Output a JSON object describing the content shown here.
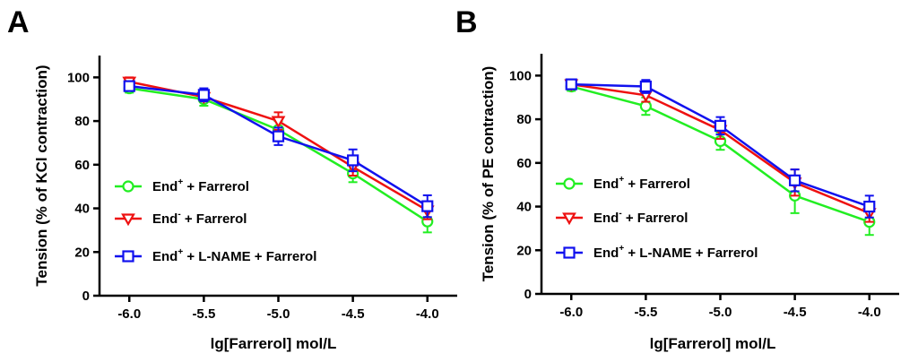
{
  "chart_data": [
    {
      "type": "line",
      "panel_label": "A",
      "xlabel": "lg[Farrerol] mol/L",
      "ylabel": "Tension (% of KCl contraction)",
      "x": [
        -6.0,
        -5.5,
        -5.0,
        -4.5,
        -4.0
      ],
      "x_tick_labels": [
        "-6.0",
        "-5.5",
        "-5.0",
        "-4.5",
        "-4.0"
      ],
      "xlim": [
        -6.2,
        -3.8
      ],
      "ylim": [
        0,
        110
      ],
      "y_ticks": [
        0,
        20,
        40,
        60,
        80,
        100
      ],
      "y_tick_labels": [
        "0",
        "20",
        "40",
        "60",
        "80",
        "100"
      ],
      "grid": false,
      "legend_position": "lower-left",
      "series": [
        {
          "name": "End+ + Farrerol",
          "label_main": "End",
          "label_sup": "+",
          "label_rest": " + Farrerol",
          "color": "#22ee22",
          "marker": "circle",
          "values": [
            95,
            90,
            76,
            56,
            34
          ],
          "errors": [
            2,
            3,
            4,
            4,
            5
          ]
        },
        {
          "name": "End- + Farrerol",
          "label_main": "End",
          "label_sup": "-",
          "label_rest": " + Farrerol",
          "color": "#ee1111",
          "marker": "triangle-down",
          "values": [
            98,
            91,
            80,
            59,
            39
          ],
          "errors": [
            2,
            2,
            4,
            4,
            4
          ]
        },
        {
          "name": "End+ + L-NAME + Farrerol",
          "label_main": "End",
          "label_sup": "+",
          "label_rest": " + L-NAME + Farrerol",
          "color": "#1111ee",
          "marker": "square",
          "values": [
            96,
            92,
            73,
            62,
            41
          ],
          "errors": [
            2,
            3,
            4,
            5,
            5
          ]
        }
      ]
    },
    {
      "type": "line",
      "panel_label": "B",
      "xlabel": "lg[Farrerol] mol/L",
      "ylabel": "Tension (% of PE contraction)",
      "x": [
        -6.0,
        -5.5,
        -5.0,
        -4.5,
        -4.0
      ],
      "x_tick_labels": [
        "-6.0",
        "-5.5",
        "-5.0",
        "-4.5",
        "-4.0"
      ],
      "xlim": [
        -6.2,
        -3.8
      ],
      "ylim": [
        0,
        110
      ],
      "y_ticks": [
        0,
        20,
        40,
        60,
        80,
        100
      ],
      "y_tick_labels": [
        "0",
        "20",
        "40",
        "60",
        "80",
        "100"
      ],
      "grid": false,
      "legend_position": "lower-left",
      "series": [
        {
          "name": "End+ + Farrerol",
          "label_main": "End",
          "label_sup": "+",
          "label_rest": " + Farrerol",
          "color": "#22ee22",
          "marker": "circle",
          "values": [
            95,
            86,
            70,
            45,
            33
          ],
          "errors": [
            2,
            4,
            4,
            8,
            6
          ]
        },
        {
          "name": "End- + Farrerol",
          "label_main": "End",
          "label_sup": "-",
          "label_rest": " + Farrerol",
          "color": "#ee1111",
          "marker": "triangle-down",
          "values": [
            96,
            91,
            75,
            51,
            37
          ],
          "errors": [
            2,
            3,
            4,
            6,
            4
          ]
        },
        {
          "name": "End+ + L-NAME + Farrerol",
          "label_main": "End",
          "label_sup": "+",
          "label_rest": " + L-NAME + Farrerol",
          "color": "#1111ee",
          "marker": "square",
          "values": [
            96,
            95,
            77,
            52,
            40
          ],
          "errors": [
            2,
            3,
            4,
            5,
            5
          ]
        }
      ]
    }
  ]
}
